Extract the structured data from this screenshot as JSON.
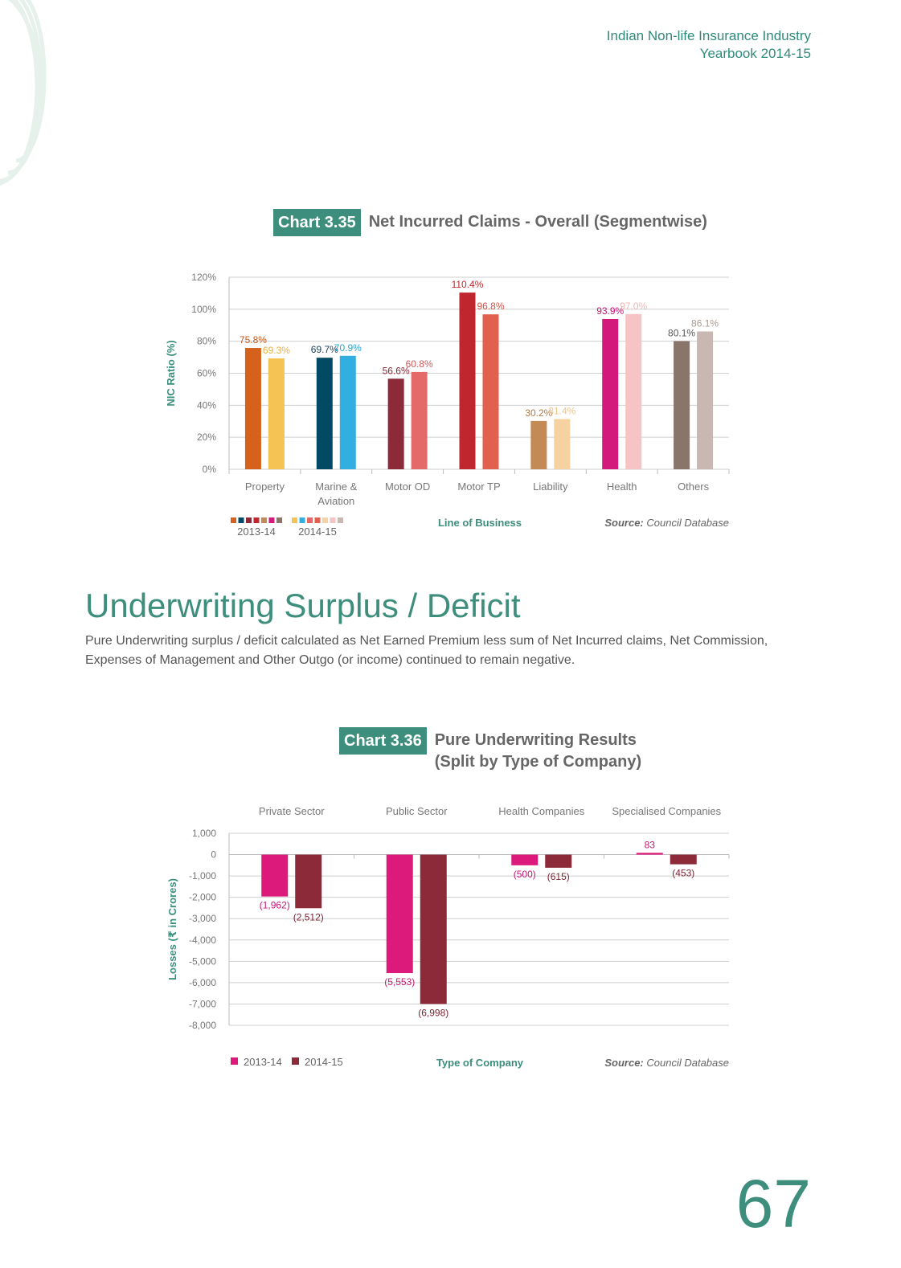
{
  "header": {
    "line1": "Indian Non-life Insurance Industry",
    "line2": "Yearbook 2014-15"
  },
  "colors": {
    "accent": "#3d8e7c",
    "text": "#666666",
    "grid": "#cccccc"
  },
  "chart1": {
    "badge": "Chart 3.35",
    "title": "Net Incurred Claims - Overall (Segmentwise)",
    "source_label": "Source:",
    "source_text": "Council Database",
    "legend": {
      "series1": "2013-14",
      "series2": "2014-15"
    },
    "series1_colors": [
      "#d6611c",
      "#004a65",
      "#8c2a3a",
      "#c0262e",
      "#c48a55",
      "#d4197d",
      "#8a756b"
    ],
    "series2_colors": [
      "#f5c254",
      "#32afe0",
      "#e46a69",
      "#e2604e",
      "#f5d29f",
      "#f7c4c6",
      "#c8b8b1"
    ],
    "series1_label_colors": [
      "#c9591a",
      "#1a3f57",
      "#8c2a3a",
      "#c0262e",
      "#b07a46",
      "#c11873",
      "#555555"
    ],
    "series2_label_colors": [
      "#e8b140",
      "#2aa3d5",
      "#cf5a58",
      "#d45244",
      "#f0c48a",
      "#f2b6b8",
      "#a99a92"
    ]
  },
  "chart_data": [
    {
      "type": "bar",
      "categories": [
        "Property",
        "Marine & Aviation",
        "Motor OD",
        "Motor TP",
        "Liability",
        "Health",
        "Others"
      ],
      "series": [
        {
          "name": "2013-14",
          "values": [
            75.8,
            69.7,
            56.6,
            110.4,
            30.2,
            93.9,
            80.1
          ]
        },
        {
          "name": "2014-15",
          "values": [
            69.3,
            70.9,
            60.8,
            96.8,
            31.4,
            97.0,
            86.1
          ]
        }
      ],
      "labels1": [
        "75.8%",
        "69.7%",
        "56.6%",
        "110.4%",
        "30.2%",
        "93.9%",
        "80.1%"
      ],
      "labels2": [
        "69.3%",
        "70.9%",
        "60.8%",
        "96.8%",
        "31.4%",
        "97.0%",
        "86.1%"
      ],
      "xlabel": "Line of Business",
      "ylabel": "NIC Ratio (%)",
      "ylim": [
        0,
        120
      ],
      "yticks": [
        0,
        20,
        40,
        60,
        80,
        100,
        120
      ],
      "ytick_labels": [
        "0%",
        "20%",
        "40%",
        "60%",
        "80%",
        "100%",
        "120%"
      ],
      "grid": true,
      "legend_position": "bottom-left"
    },
    {
      "type": "bar",
      "categories": [
        "Private Sector",
        "Public Sector",
        "Health Companies",
        "Specialised Companies"
      ],
      "series": [
        {
          "name": "2013-14",
          "values": [
            -1962,
            -5553,
            -500,
            83
          ]
        },
        {
          "name": "2014-15",
          "values": [
            -2512,
            -6998,
            -615,
            -453
          ]
        }
      ],
      "labels1": [
        "(1,962)",
        "(5,553)",
        "(500)",
        "83"
      ],
      "labels2": [
        "(2,512)",
        "(6,998)",
        "(615)",
        "(453)"
      ],
      "xlabel": "Type of Company",
      "ylabel": "Losses (₹ in Crores)",
      "ylim": [
        -8000,
        1000
      ],
      "yticks": [
        1000,
        0,
        -1000,
        -2000,
        -3000,
        -4000,
        -5000,
        -6000,
        -7000,
        -8000
      ],
      "ytick_labels": [
        "1,000",
        "0",
        "-1,000",
        "-2,000",
        "-3,000",
        "-4,000",
        "-5,000",
        "-6,000",
        "-7,000",
        "-8,000"
      ],
      "grid": true,
      "legend_position": "bottom-left"
    }
  ],
  "section": {
    "title": "Underwriting Surplus / Deficit",
    "body": "Pure Underwriting surplus / deficit calculated as Net Earned Premium less sum of Net Incurred claims, Net Commission, Expenses of Management and Other Outgo (or income) continued to remain negative."
  },
  "chart2": {
    "badge": "Chart 3.36",
    "title_line1": "Pure Underwriting Results",
    "title_line2": "(Split by Type of Company)",
    "source_label": "Source:",
    "source_text": "Council Database",
    "legend": {
      "series1": "2013-14",
      "series2": "2014-15"
    },
    "series1_color": "#dc1a7c",
    "series2_color": "#8c2a3a"
  },
  "page_number": "67"
}
